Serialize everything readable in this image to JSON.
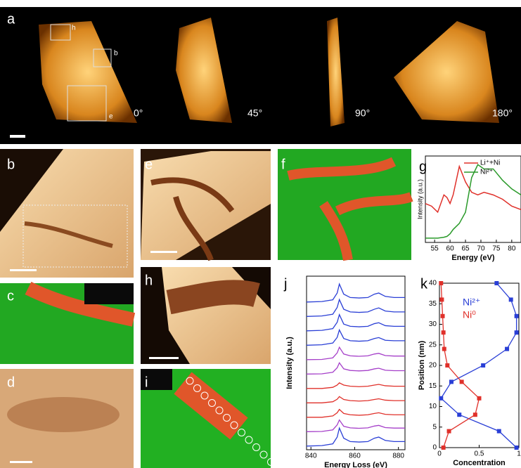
{
  "panel_labels": [
    "a",
    "b",
    "c",
    "d",
    "e",
    "f",
    "h",
    "i"
  ],
  "inset_labels": [
    "h",
    "b",
    "e"
  ],
  "angles": [
    "0°",
    "45°",
    "90°",
    "180°"
  ],
  "chart_data": [
    {
      "type": "line",
      "label": "g",
      "xlabel": "Energy (eV)",
      "ylabel": "Intensity (a.u.)",
      "x": [
        52,
        54,
        56,
        58,
        59,
        60,
        61,
        63,
        65,
        67,
        69,
        71,
        74,
        77,
        80,
        83
      ],
      "series": [
        {
          "name": "Li⁺+Ni",
          "color": "#e0302a",
          "values": [
            0.45,
            0.42,
            0.35,
            0.55,
            0.52,
            0.45,
            0.55,
            0.88,
            0.7,
            0.58,
            0.55,
            0.58,
            0.55,
            0.5,
            0.42,
            0.38
          ]
        },
        {
          "name": "Ni²⁺",
          "color": "#2a9a2a",
          "values": [
            0.05,
            0.05,
            0.05,
            0.06,
            0.07,
            0.1,
            0.15,
            0.22,
            0.35,
            0.75,
            0.9,
            0.85,
            0.85,
            0.72,
            0.62,
            0.55
          ]
        }
      ],
      "xlim": [
        52,
        83
      ],
      "xticks": [
        55,
        60,
        65,
        70,
        75,
        80
      ],
      "ylim": [
        0,
        1
      ],
      "legend": "upper right"
    },
    {
      "type": "line",
      "label": "j",
      "xlabel": "Energy Loss (eV)",
      "ylabel": "Intensity (a.u.)",
      "x": [
        838,
        845,
        850,
        852,
        853,
        855,
        858,
        862,
        866,
        869,
        871,
        874,
        878,
        883
      ],
      "series": [
        {
          "color": "#2a3fd6",
          "values": [
            0.1,
            0.12,
            0.2,
            0.5,
            0.9,
            0.45,
            0.3,
            0.28,
            0.3,
            0.45,
            0.5,
            0.35,
            0.3,
            0.3
          ]
        },
        {
          "color": "#2a3fd6",
          "values": [
            0.1,
            0.12,
            0.2,
            0.5,
            0.85,
            0.42,
            0.3,
            0.28,
            0.3,
            0.42,
            0.48,
            0.34,
            0.3,
            0.3
          ]
        },
        {
          "color": "#2a3fd6",
          "values": [
            0.1,
            0.12,
            0.2,
            0.48,
            0.82,
            0.4,
            0.3,
            0.28,
            0.3,
            0.42,
            0.46,
            0.33,
            0.3,
            0.3
          ]
        },
        {
          "color": "#2a3fd6",
          "values": [
            0.1,
            0.12,
            0.2,
            0.45,
            0.78,
            0.4,
            0.3,
            0.28,
            0.3,
            0.4,
            0.44,
            0.32,
            0.3,
            0.3
          ]
        },
        {
          "color": "#a53fc9",
          "values": [
            0.1,
            0.11,
            0.18,
            0.4,
            0.65,
            0.35,
            0.27,
            0.25,
            0.27,
            0.35,
            0.38,
            0.28,
            0.26,
            0.26
          ]
        },
        {
          "color": "#a53fc9",
          "values": [
            0.1,
            0.11,
            0.18,
            0.38,
            0.6,
            0.33,
            0.26,
            0.24,
            0.26,
            0.33,
            0.36,
            0.27,
            0.25,
            0.25
          ]
        },
        {
          "color": "#e0302a",
          "values": [
            0.1,
            0.1,
            0.15,
            0.25,
            0.35,
            0.25,
            0.2,
            0.18,
            0.2,
            0.25,
            0.28,
            0.22,
            0.2,
            0.2
          ]
        },
        {
          "color": "#e0302a",
          "values": [
            0.1,
            0.1,
            0.15,
            0.26,
            0.38,
            0.25,
            0.2,
            0.18,
            0.2,
            0.25,
            0.28,
            0.22,
            0.2,
            0.2
          ]
        },
        {
          "color": "#e0302a",
          "values": [
            0.1,
            0.1,
            0.16,
            0.3,
            0.45,
            0.27,
            0.21,
            0.19,
            0.21,
            0.27,
            0.3,
            0.23,
            0.21,
            0.21
          ]
        },
        {
          "color": "#a53fc9",
          "values": [
            0.1,
            0.11,
            0.18,
            0.4,
            0.62,
            0.34,
            0.27,
            0.25,
            0.27,
            0.35,
            0.38,
            0.28,
            0.26,
            0.26
          ]
        },
        {
          "color": "#2a3fd6",
          "values": [
            0.1,
            0.12,
            0.2,
            0.5,
            0.9,
            0.45,
            0.3,
            0.28,
            0.3,
            0.45,
            0.5,
            0.35,
            0.3,
            0.3
          ]
        }
      ],
      "xlim": [
        838,
        883
      ],
      "xticks": [
        840,
        860,
        880
      ],
      "ylim": [
        0,
        1
      ]
    },
    {
      "type": "scatter",
      "label": "k",
      "xlabel": "Concentration",
      "ylabel": "Position (nm)",
      "series": [
        {
          "name": "Ni²⁺",
          "color": "#2a3fd6",
          "x": [
            0.97,
            0.75,
            0.25,
            0.02,
            0.15,
            0.55,
            0.85,
            0.97,
            0.97,
            0.9,
            0.72
          ],
          "values": [
            0,
            4,
            8,
            12,
            16,
            20,
            24,
            28,
            32,
            36,
            40
          ]
        },
        {
          "name": "Ni⁰",
          "color": "#e0302a",
          "x": [
            0.05,
            0.12,
            0.45,
            0.5,
            0.28,
            0.1,
            0.06,
            0.05,
            0.04,
            0.03,
            0.02
          ],
          "values": [
            0,
            4,
            8,
            12,
            16,
            20,
            24,
            28,
            32,
            36,
            40
          ]
        }
      ],
      "xlim": [
        0,
        1
      ],
      "xticks": [
        0,
        0.5,
        1
      ],
      "ylim": [
        0,
        40
      ],
      "yticks": [
        0,
        5,
        10,
        15,
        20,
        25,
        30,
        35,
        40
      ],
      "legend": "upper center"
    }
  ]
}
